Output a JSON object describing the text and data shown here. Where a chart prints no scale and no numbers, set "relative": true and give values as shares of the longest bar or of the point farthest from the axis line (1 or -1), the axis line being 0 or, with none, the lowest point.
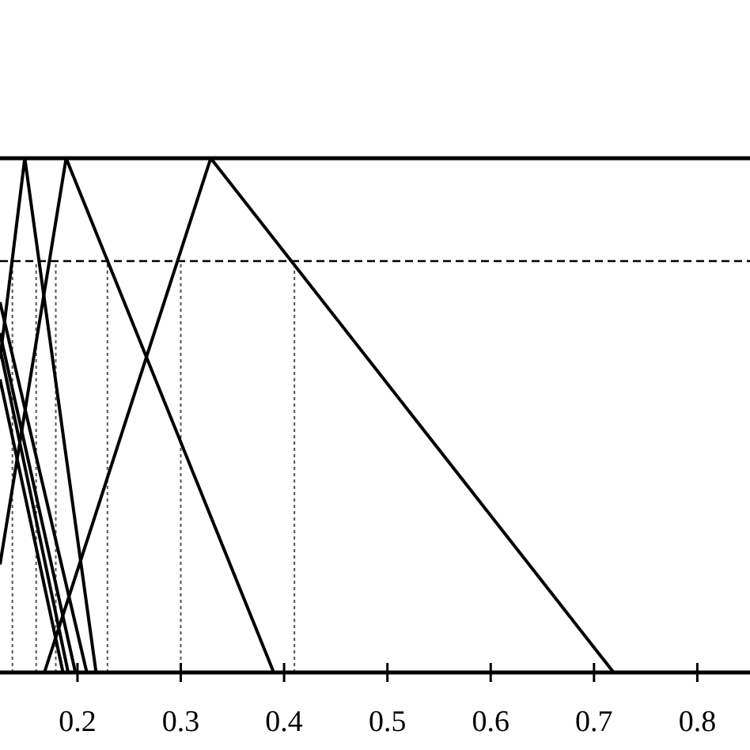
{
  "chart_data": {
    "type": "line",
    "relative": true,
    "xlim": [
      0.125,
      0.851
    ],
    "xticks": [
      0.2,
      0.3,
      0.4,
      0.5,
      0.6,
      0.7,
      0.8
    ],
    "tick_labels": "x",
    "line_style": "solid",
    "series": [
      {
        "color": "#000000",
        "x": [
          0.125,
          0.149,
          0.218
        ],
        "values": [
          0.61,
          1,
          0
        ]
      },
      {
        "color": "#000000",
        "x": [
          0.125,
          0.189,
          0.39
        ],
        "values": [
          0.21,
          1,
          0
        ]
      },
      {
        "color": "#000000",
        "x": [
          0.168,
          0.329,
          0.719
        ],
        "values": [
          0,
          1,
          0
        ]
      },
      {
        "color": "#000000",
        "x": [
          0.125,
          0.186
        ],
        "values": [
          0.57,
          0
        ]
      },
      {
        "color": "#000000",
        "x": [
          0.125,
          0.191
        ],
        "values": [
          0.63,
          0
        ]
      },
      {
        "color": "#000000",
        "x": [
          0.125,
          0.198
        ],
        "values": [
          0.66,
          0
        ]
      },
      {
        "color": "#000000",
        "x": [
          0.125,
          0.209
        ],
        "values": [
          0.72,
          0
        ]
      }
    ],
    "ref_lines": [
      {
        "axis": "y",
        "value": 1,
        "color": "#000000",
        "line_style": "solid"
      },
      {
        "axis": "y",
        "value": 0.8,
        "color": "#000000",
        "line_style": "dashed"
      },
      {
        "axis": "x",
        "value": 0.137,
        "color": "#555555",
        "line_style": "dotted"
      },
      {
        "axis": "x",
        "value": 0.16,
        "color": "#555555",
        "line_style": "dotted"
      },
      {
        "axis": "x",
        "value": 0.179,
        "color": "#555555",
        "line_style": "dotted"
      },
      {
        "axis": "x",
        "value": 0.229,
        "color": "#555555",
        "line_style": "dotted"
      },
      {
        "axis": "x",
        "value": 0.3,
        "color": "#555555",
        "line_style": "dotted"
      },
      {
        "axis": "x",
        "value": 0.41,
        "color": "#555555",
        "line_style": "dotted"
      }
    ]
  }
}
